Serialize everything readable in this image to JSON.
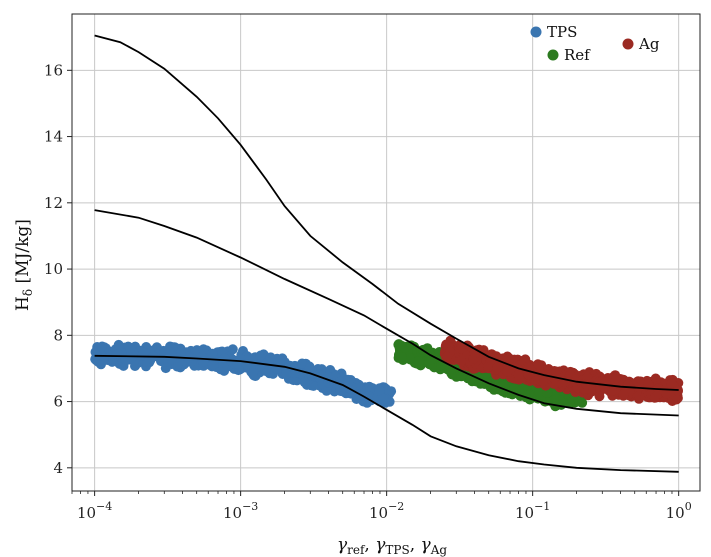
{
  "chart_data": {
    "type": "scatter",
    "xscale": "log",
    "xlim": [
      7e-05,
      1.4
    ],
    "ylim": [
      3.3,
      17.7
    ],
    "grid": true,
    "xlabel": "γref, γTPS, γAg",
    "ylabel": "Hδ [MJ/kg]",
    "xticks": [
      {
        "value": 0.0001,
        "base": "10",
        "exp": "−4"
      },
      {
        "value": 0.001,
        "base": "10",
        "exp": "−3"
      },
      {
        "value": 0.01,
        "base": "10",
        "exp": "−2"
      },
      {
        "value": 0.1,
        "base": "10",
        "exp": "−1"
      },
      {
        "value": 1,
        "base": "10",
        "exp": "0"
      }
    ],
    "yticks": [
      4,
      6,
      8,
      10,
      12,
      14,
      16
    ],
    "legend": {
      "placement": "top-right",
      "entries": [
        {
          "name": "TPS",
          "color": "#3a75b0"
        },
        {
          "name": "Ref",
          "color": "#2c7a1f"
        },
        {
          "name": "Ag",
          "color": "#9b2a22"
        }
      ]
    },
    "series": [
      {
        "name": "TPS",
        "color": "#3a75b0",
        "kind": "scatter-band",
        "x_range": [
          0.0001,
          0.011
        ],
        "spread": 0.42,
        "count": 700,
        "center": [
          [
            0.0001,
            7.42
          ],
          [
            0.0003,
            7.35
          ],
          [
            0.001,
            7.2
          ],
          [
            0.002,
            7.0
          ],
          [
            0.004,
            6.65
          ],
          [
            0.007,
            6.3
          ],
          [
            0.011,
            6.1
          ]
        ]
      },
      {
        "name": "Ref",
        "color": "#2c7a1f",
        "kind": "scatter-band",
        "x_range": [
          0.012,
          0.22
        ],
        "spread": 0.4,
        "count": 700,
        "center": [
          [
            0.012,
            7.55
          ],
          [
            0.02,
            7.3
          ],
          [
            0.04,
            6.8
          ],
          [
            0.07,
            6.45
          ],
          [
            0.12,
            6.25
          ],
          [
            0.22,
            6.1
          ]
        ]
      },
      {
        "name": "Ag",
        "color": "#9b2a22",
        "kind": "scatter-band",
        "x_range": [
          0.025,
          1.0
        ],
        "spread": 0.42,
        "count": 900,
        "center": [
          [
            0.025,
            7.55
          ],
          [
            0.05,
            7.2
          ],
          [
            0.1,
            6.85
          ],
          [
            0.2,
            6.6
          ],
          [
            0.5,
            6.4
          ],
          [
            1.0,
            6.3
          ]
        ]
      },
      {
        "name": "",
        "color": "#000000",
        "kind": "line",
        "points": [
          [
            0.0001,
            17.05
          ],
          [
            0.00015,
            16.85
          ],
          [
            0.0002,
            16.55
          ],
          [
            0.0003,
            16.05
          ],
          [
            0.0005,
            15.2
          ],
          [
            0.0007,
            14.55
          ],
          [
            0.001,
            13.75
          ],
          [
            0.0015,
            12.7
          ],
          [
            0.002,
            11.9
          ],
          [
            0.003,
            11.0
          ],
          [
            0.005,
            10.2
          ],
          [
            0.008,
            9.55
          ],
          [
            0.012,
            8.95
          ],
          [
            0.02,
            8.35
          ],
          [
            0.03,
            7.9
          ],
          [
            0.05,
            7.35
          ],
          [
            0.08,
            7.0
          ],
          [
            0.12,
            6.8
          ],
          [
            0.2,
            6.6
          ],
          [
            0.4,
            6.45
          ],
          [
            0.7,
            6.38
          ],
          [
            1.0,
            6.35
          ]
        ]
      },
      {
        "name": "",
        "color": "#000000",
        "kind": "line",
        "points": [
          [
            0.0001,
            11.78
          ],
          [
            0.0002,
            11.55
          ],
          [
            0.0003,
            11.3
          ],
          [
            0.0005,
            10.95
          ],
          [
            0.001,
            10.35
          ],
          [
            0.002,
            9.7
          ],
          [
            0.004,
            9.1
          ],
          [
            0.007,
            8.6
          ],
          [
            0.01,
            8.2
          ],
          [
            0.015,
            7.75
          ],
          [
            0.02,
            7.4
          ],
          [
            0.03,
            7.0
          ],
          [
            0.05,
            6.55
          ],
          [
            0.08,
            6.2
          ],
          [
            0.12,
            5.95
          ],
          [
            0.2,
            5.78
          ],
          [
            0.4,
            5.65
          ],
          [
            1.0,
            5.58
          ]
        ]
      },
      {
        "name": "",
        "color": "#000000",
        "kind": "line",
        "points": [
          [
            0.0001,
            7.38
          ],
          [
            0.0003,
            7.35
          ],
          [
            0.0005,
            7.3
          ],
          [
            0.001,
            7.22
          ],
          [
            0.002,
            7.05
          ],
          [
            0.003,
            6.85
          ],
          [
            0.005,
            6.5
          ],
          [
            0.007,
            6.15
          ],
          [
            0.01,
            5.75
          ],
          [
            0.015,
            5.3
          ],
          [
            0.02,
            4.95
          ],
          [
            0.03,
            4.65
          ],
          [
            0.05,
            4.38
          ],
          [
            0.08,
            4.2
          ],
          [
            0.12,
            4.1
          ],
          [
            0.2,
            4.0
          ],
          [
            0.4,
            3.93
          ],
          [
            1.0,
            3.88
          ]
        ]
      }
    ]
  }
}
